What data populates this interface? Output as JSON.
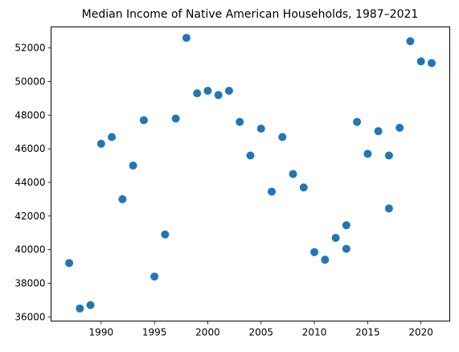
{
  "chart_data": {
    "type": "scatter",
    "title": "Median Income of Native American Households, 1987–2021",
    "xlabel": "",
    "ylabel": "",
    "xlim": [
      1985.3,
      2022.7
    ],
    "ylim": [
      35750,
      53250
    ],
    "x_ticks": [
      1990,
      1995,
      2000,
      2005,
      2010,
      2015,
      2020
    ],
    "y_ticks": [
      36000,
      38000,
      40000,
      42000,
      44000,
      46000,
      48000,
      50000,
      52000
    ],
    "grid": false,
    "marker_color": "#1f77b4",
    "points": [
      {
        "x": 1987,
        "y": 39200
      },
      {
        "x": 1988,
        "y": 36500
      },
      {
        "x": 1989,
        "y": 36700
      },
      {
        "x": 1990,
        "y": 46300
      },
      {
        "x": 1991,
        "y": 46700
      },
      {
        "x": 1992,
        "y": 43000
      },
      {
        "x": 1993,
        "y": 45000
      },
      {
        "x": 1994,
        "y": 47700
      },
      {
        "x": 1995,
        "y": 38400
      },
      {
        "x": 1996,
        "y": 40900
      },
      {
        "x": 1997,
        "y": 47800
      },
      {
        "x": 1998,
        "y": 52600
      },
      {
        "x": 1999,
        "y": 49300
      },
      {
        "x": 2000,
        "y": 49450
      },
      {
        "x": 2001,
        "y": 49200
      },
      {
        "x": 2002,
        "y": 49450
      },
      {
        "x": 2003,
        "y": 47600
      },
      {
        "x": 2004,
        "y": 45600
      },
      {
        "x": 2005,
        "y": 47200
      },
      {
        "x": 2006,
        "y": 43450
      },
      {
        "x": 2007,
        "y": 46700
      },
      {
        "x": 2008,
        "y": 44500
      },
      {
        "x": 2009,
        "y": 43700
      },
      {
        "x": 2010,
        "y": 39850
      },
      {
        "x": 2011,
        "y": 39400
      },
      {
        "x": 2012,
        "y": 40700
      },
      {
        "x": 2013,
        "y": 41450
      },
      {
        "x": 2013,
        "y": 40050
      },
      {
        "x": 2014,
        "y": 47600
      },
      {
        "x": 2015,
        "y": 45700
      },
      {
        "x": 2016,
        "y": 47050
      },
      {
        "x": 2017,
        "y": 45600
      },
      {
        "x": 2017,
        "y": 42450
      },
      {
        "x": 2018,
        "y": 47250
      },
      {
        "x": 2019,
        "y": 52400
      },
      {
        "x": 2020,
        "y": 51200
      },
      {
        "x": 2021,
        "y": 51100
      }
    ]
  }
}
